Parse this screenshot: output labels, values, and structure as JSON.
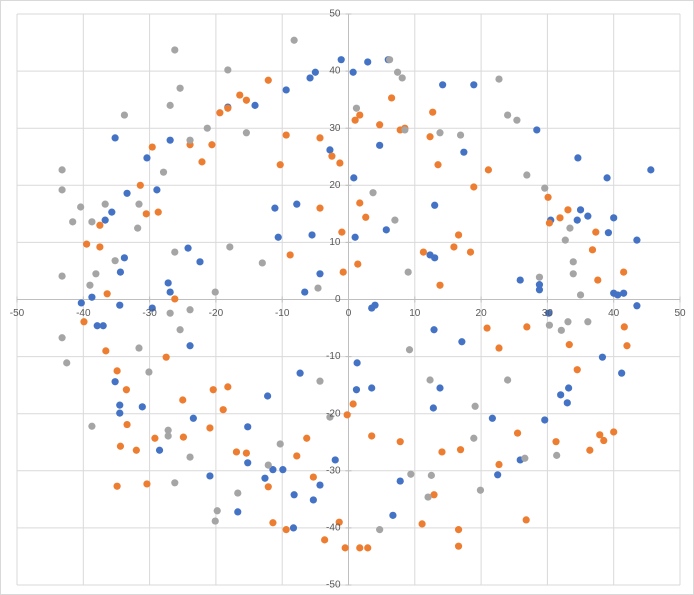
{
  "chart_data": {
    "type": "scatter",
    "xlim": [
      -50,
      50
    ],
    "ylim": [
      -50,
      50
    ],
    "xticks": [
      -50,
      -40,
      -30,
      -20,
      -10,
      0,
      10,
      20,
      30,
      40,
      50
    ],
    "yticks": [
      -50,
      -40,
      -30,
      -20,
      -10,
      0,
      10,
      20,
      30,
      40,
      50
    ],
    "grid": true,
    "series": [
      {
        "color": "#4472c4",
        "x": [
          45.6,
          39,
          34.6,
          28.4,
          18.9,
          14.2,
          6.0,
          2.9,
          -1.1,
          0.7,
          -5,
          -5.8,
          -9.4,
          -14.1,
          -18.2,
          -26.9,
          -35.2,
          -30.4,
          -28.9,
          -33.4,
          -35.7,
          -36.7,
          -33.8,
          -34.4,
          -40.3,
          -38.7,
          -34.5,
          -29.6,
          -37,
          -37.9,
          -24.2,
          -22.4,
          -27.2,
          -26.9,
          -10.6,
          -11.1,
          -7.8,
          -5.5,
          -4.3,
          -6.6,
          1,
          5.7,
          0.8,
          -2.8,
          4.7,
          4,
          3.5,
          1.3,
          3.5,
          13,
          13,
          12.3,
          12.9,
          13.8,
          12.8,
          17.1,
          17.4,
          25.9,
          28.8,
          28.8,
          30.2,
          30.5,
          34.5,
          35,
          36.1,
          40,
          39.2,
          43.5,
          40,
          40.6,
          41.5,
          43.5,
          38.3,
          41.2,
          33.2,
          32,
          33,
          29.6,
          21.7,
          25.9,
          22.5,
          7.8,
          6.7,
          -2,
          -4.3,
          -5.3,
          -8.2,
          -8.3,
          -9.9,
          -11.4,
          -12.6,
          -16.7,
          -20.9,
          -23.4,
          -28.5,
          -31.1,
          -34.5,
          -34.5,
          -35.2,
          -23.9,
          -7.3,
          -12.2,
          -15.2,
          -15.2,
          1.2
        ],
        "values": [
          22.7,
          21.3,
          24.8,
          29.7,
          37.6,
          37.6,
          42,
          41.6,
          42,
          39.8,
          39.8,
          38.8,
          36.7,
          34,
          33.7,
          27.9,
          28.3,
          24.8,
          19.2,
          18.6,
          15.3,
          13.9,
          7.3,
          4.8,
          -0.6,
          0.4,
          -1,
          -1.5,
          -4.6,
          -4.6,
          9,
          6.6,
          2.9,
          1.3,
          10.9,
          16,
          16.7,
          11.3,
          4.5,
          1.3,
          10.9,
          12.2,
          21.3,
          26.2,
          27,
          -1,
          -1.5,
          -11.1,
          -15.5,
          7.3,
          16.5,
          7.8,
          -5.3,
          -15.5,
          -19,
          -7.4,
          25.8,
          3.4,
          2.6,
          1.7,
          -2.4,
          13.9,
          13.9,
          15.7,
          14.6,
          14.3,
          11.7,
          10.4,
          1.1,
          0.8,
          1.1,
          -1.1,
          -10.1,
          -12.9,
          -15.5,
          -16.7,
          -18.1,
          -21.1,
          -20.8,
          -28.1,
          -30.7,
          -31.8,
          -37.8,
          -28.1,
          -32.5,
          -35.1,
          -34.2,
          -40,
          -29.8,
          -29.8,
          -31.3,
          -37.2,
          -30.9,
          -20.8,
          -26.4,
          -18.8,
          -18.5,
          -19.9,
          -14.4,
          -8.1,
          -12.9,
          -16.9,
          -22.3,
          -28.6,
          -15.8
        ]
      },
      {
        "color": "#ed7d31",
        "x": [
          21.1,
          18.9,
          12.3,
          13.5,
          12.7,
          8.5,
          7.8,
          6.5,
          4.7,
          1.7,
          1,
          -1.3,
          -2.5,
          -4.3,
          -4.3,
          -1,
          1.7,
          2.6,
          -0.8,
          1.4,
          -8.8,
          -10.3,
          -9.4,
          -12.1,
          -16.4,
          -15.4,
          -18.2,
          -19.4,
          -22.1,
          -20.6,
          -23.9,
          -29.6,
          -31.4,
          -28.7,
          -30.5,
          -37.5,
          -39.5,
          -37.5,
          -36.4,
          -39.9,
          -36.6,
          -34.9,
          -33.5,
          -33.4,
          -34.4,
          -32,
          -34.9,
          -30.4,
          -29.2,
          -26.2,
          -27.5,
          -25,
          -24.9,
          -20.4,
          -20.9,
          -18.2,
          -18.9,
          -16.9,
          -15.4,
          -12.1,
          -11.4,
          -9.4,
          -5.3,
          -6.3,
          -7.8,
          -3.6,
          -1.4,
          -0.5,
          1.7,
          2.9,
          3.5,
          0.7,
          -0.2,
          7.8,
          11.1,
          12.9,
          16.6,
          16.6,
          16.9,
          14.1,
          26.8,
          22.7,
          25.5,
          31.3,
          36.4,
          37.9,
          38.5,
          40,
          41.6,
          42,
          34.5,
          33.3,
          26.9,
          22.7,
          20.9,
          18.4,
          16.6,
          15.9,
          13.8,
          11.3,
          30.1,
          30.3,
          31.9,
          33.1,
          37.3,
          36.8,
          37.6,
          41.5
        ],
        "values": [
          22.7,
          19.7,
          28.5,
          23.6,
          32.8,
          30,
          29.7,
          35.3,
          30.6,
          32.3,
          31.4,
          23.9,
          25.1,
          28.3,
          16,
          11.8,
          16.9,
          14.4,
          4.8,
          6.2,
          7.8,
          23.6,
          28.8,
          38.4,
          35.8,
          34.9,
          33.5,
          32.7,
          24.1,
          27.1,
          27.1,
          26.7,
          20,
          15.3,
          15,
          13,
          9.7,
          9.2,
          1,
          -3.9,
          -9,
          -12.5,
          -15.8,
          -21.9,
          -25.7,
          -26.4,
          -32.7,
          -32.3,
          -24.3,
          0.1,
          -10.1,
          -17.6,
          -24.1,
          -15.8,
          -22.5,
          -15.3,
          -19.3,
          -26.7,
          -26.9,
          -32.8,
          -39.1,
          -40.3,
          -31.1,
          -24.3,
          -27.4,
          -42.1,
          -39,
          -43.5,
          -43.5,
          -43.5,
          -23.9,
          -18.3,
          -20.2,
          -24.9,
          -39.3,
          -34.2,
          -40.3,
          -43.2,
          -26.3,
          -26.7,
          -38.6,
          -28.9,
          -23.4,
          -24.9,
          -26.4,
          -23.7,
          -24.7,
          -23.2,
          -4.8,
          -8.1,
          -12.3,
          -7.9,
          -4.8,
          -8.5,
          -5,
          8.3,
          11.3,
          9.2,
          2.5,
          8.3,
          17.9,
          13.4,
          14.3,
          15.7,
          11.8,
          8.7,
          3.4,
          4.8
        ]
      },
      {
        "color": "#a5a5a5",
        "x": [
          -26.2,
          -8.2,
          -18.2,
          -25.4,
          -26.9,
          -23.9,
          -15.4,
          -21.3,
          -33.8,
          -43.2,
          -43.2,
          -40.4,
          -41.6,
          -38.7,
          -36.7,
          -31.6,
          -31.8,
          -27.9,
          -26.2,
          -35.2,
          -38.1,
          -39,
          -43.2,
          -43.2,
          -42.5,
          -31.6,
          -30.1,
          -38.7,
          -27.2,
          -27.2,
          -23.9,
          -26.2,
          -19.8,
          -20.1,
          -16.7,
          -12.1,
          -10.3,
          -4.3,
          -2.8,
          4.7,
          9.4,
          12.5,
          12,
          19.1,
          19.9,
          24,
          26.6,
          31.4,
          30.3,
          32.1,
          33.1,
          33.9,
          33.9,
          32.7,
          33.4,
          35,
          36.1,
          28.8,
          29.6,
          26.9,
          24,
          25.4,
          22.7,
          7.4,
          6.2,
          8.1,
          8.5,
          13.8,
          16.9,
          7,
          3.7,
          9,
          9.2,
          12.3,
          18.9,
          1.2,
          -4.6,
          -13,
          -17.9,
          -20.1,
          -23.9,
          -25.4,
          -26.9
        ],
        "values": [
          43.7,
          45.4,
          40.2,
          37,
          34,
          27.9,
          29.2,
          30,
          32.3,
          22.7,
          19.2,
          16.2,
          13.6,
          13.6,
          16.7,
          16.7,
          12.5,
          22.3,
          8.3,
          6.8,
          4.5,
          2.5,
          4.1,
          -6.7,
          -11.1,
          -8.5,
          -12.7,
          -22.2,
          -22.9,
          -23.9,
          -27.6,
          -32.1,
          -37,
          -38.8,
          -33.9,
          -29,
          -25.3,
          -14.3,
          -20.6,
          -40.3,
          -30.6,
          -30.8,
          -34.6,
          -18.7,
          -33.4,
          -14.1,
          -27.8,
          -27.3,
          -4.5,
          -5.4,
          -3.9,
          4.5,
          6.6,
          10.4,
          12.5,
          0.8,
          -3.9,
          3.9,
          19.5,
          21.8,
          32.3,
          31.4,
          38.6,
          39.8,
          42,
          38.8,
          29.7,
          29.2,
          28.8,
          13.9,
          18.7,
          4.8,
          -8.8,
          -14.1,
          -24.3,
          33.5,
          2,
          6.4,
          9.2,
          1.3,
          -1.8,
          -5.3,
          -2.4
        ]
      }
    ]
  }
}
